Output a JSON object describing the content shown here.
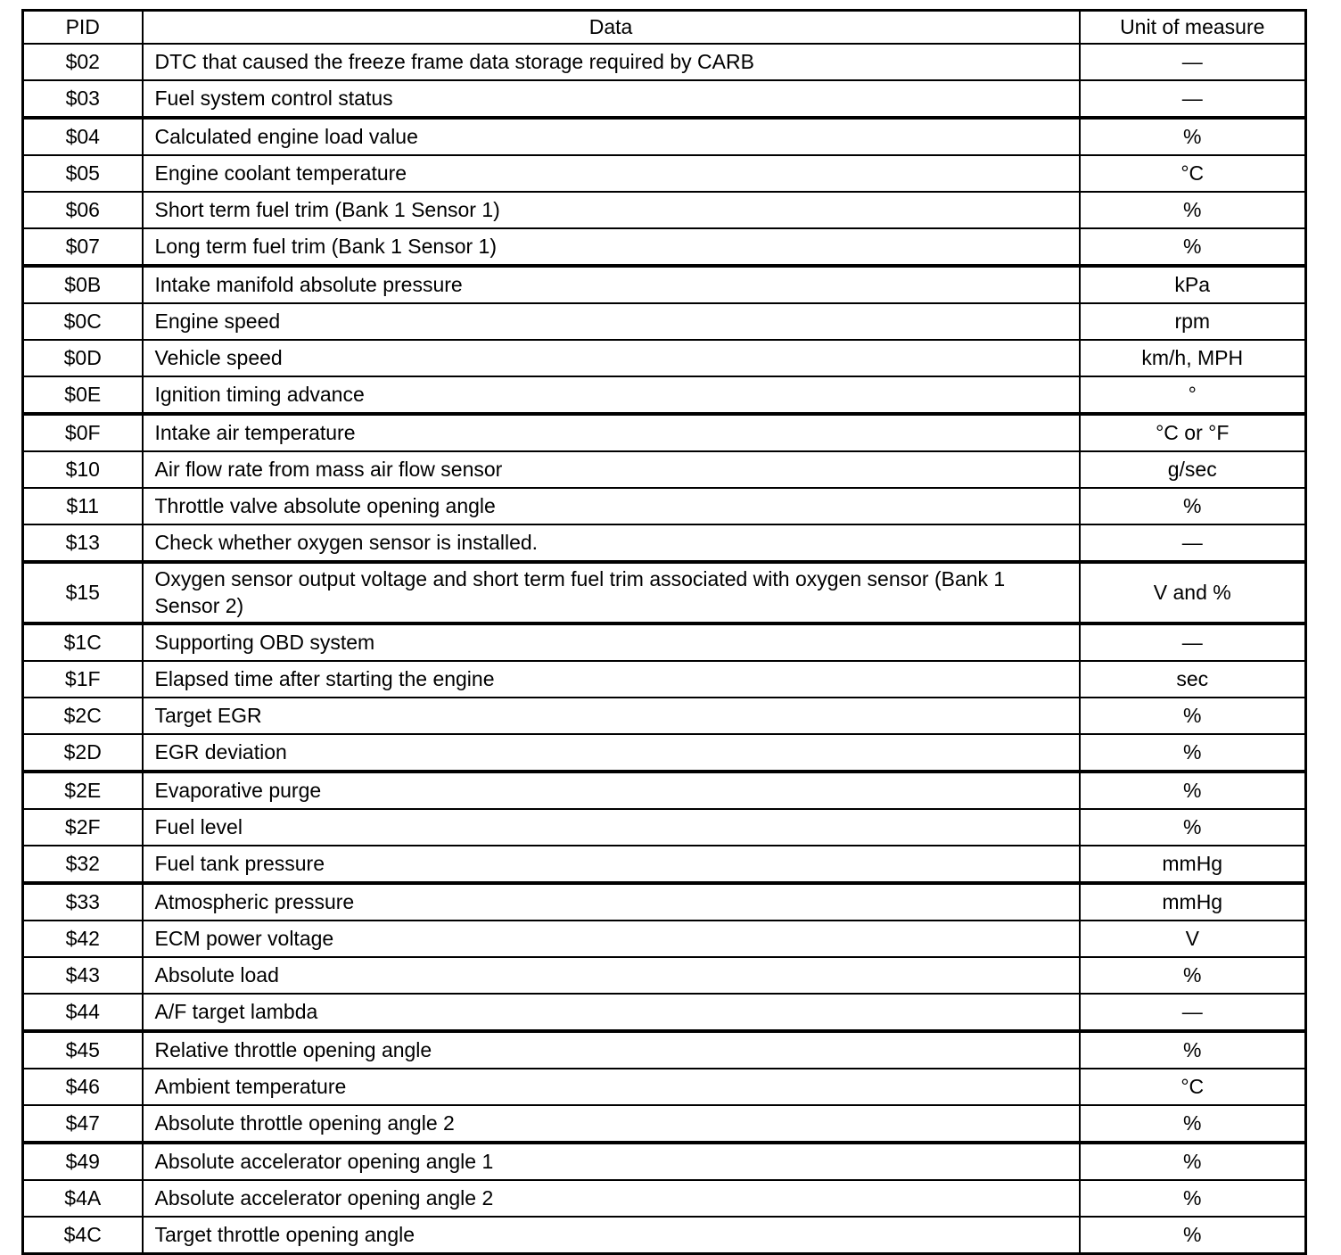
{
  "table": {
    "columns": [
      {
        "key": "pid",
        "label": "PID"
      },
      {
        "key": "data",
        "label": "Data"
      },
      {
        "key": "unit",
        "label": "Unit of measure"
      }
    ],
    "rows": [
      {
        "pid": "$02",
        "data": "DTC that caused the freeze frame data storage required by CARB",
        "unit": "—"
      },
      {
        "pid": "$03",
        "data": "Fuel system control status",
        "unit": "—"
      },
      {
        "pid": "$04",
        "data": "Calculated engine load value",
        "unit": "%",
        "thick_top": true
      },
      {
        "pid": "$05",
        "data": "Engine coolant temperature",
        "unit": "°C"
      },
      {
        "pid": "$06",
        "data": "Short term fuel trim (Bank 1 Sensor 1)",
        "unit": "%"
      },
      {
        "pid": "$07",
        "data": "Long term fuel trim (Bank 1 Sensor 1)",
        "unit": "%"
      },
      {
        "pid": "$0B",
        "data": "Intake manifold absolute pressure",
        "unit": "kPa",
        "thick_top": true
      },
      {
        "pid": "$0C",
        "data": "Engine speed",
        "unit": "rpm"
      },
      {
        "pid": "$0D",
        "data": "Vehicle speed",
        "unit": "km/h, MPH"
      },
      {
        "pid": "$0E",
        "data": "Ignition timing advance",
        "unit": "°"
      },
      {
        "pid": "$0F",
        "data": "Intake air temperature",
        "unit": "°C or °F",
        "thick_top": true
      },
      {
        "pid": "$10",
        "data": "Air flow rate from mass air flow sensor",
        "unit": "g/sec"
      },
      {
        "pid": "$11",
        "data": "Throttle valve absolute opening angle",
        "unit": "%"
      },
      {
        "pid": "$13",
        "data": "Check whether oxygen sensor is installed.",
        "unit": "—"
      },
      {
        "pid": "$15",
        "data": "Oxygen sensor output voltage and short term fuel trim associated with oxygen sensor (Bank 1 Sensor 2)",
        "unit": "V and %",
        "thick_top": true,
        "tall": true
      },
      {
        "pid": "$1C",
        "data": "Supporting OBD system",
        "unit": "—",
        "thick_top": true
      },
      {
        "pid": "$1F",
        "data": "Elapsed time after starting the engine",
        "unit": "sec"
      },
      {
        "pid": "$2C",
        "data": "Target EGR",
        "unit": "%"
      },
      {
        "pid": "$2D",
        "data": "EGR deviation",
        "unit": "%"
      },
      {
        "pid": "$2E",
        "data": "Evaporative purge",
        "unit": "%",
        "thick_top": true
      },
      {
        "pid": "$2F",
        "data": "Fuel level",
        "unit": "%"
      },
      {
        "pid": "$32",
        "data": "Fuel tank pressure",
        "unit": "mmHg"
      },
      {
        "pid": "$33",
        "data": "Atmospheric pressure",
        "unit": "mmHg",
        "thick_top": true
      },
      {
        "pid": "$42",
        "data": "ECM power voltage",
        "unit": "V"
      },
      {
        "pid": "$43",
        "data": "Absolute load",
        "unit": "%"
      },
      {
        "pid": "$44",
        "data": "A/F target lambda",
        "unit": "—"
      },
      {
        "pid": "$45",
        "data": "Relative throttle opening angle",
        "unit": "%",
        "thick_top": true
      },
      {
        "pid": "$46",
        "data": "Ambient temperature",
        "unit": "°C"
      },
      {
        "pid": "$47",
        "data": "Absolute throttle opening angle 2",
        "unit": "%"
      },
      {
        "pid": "$49",
        "data": "Absolute accelerator opening angle 1",
        "unit": "%",
        "thick_top": true
      },
      {
        "pid": "$4A",
        "data": "Absolute accelerator opening angle 2",
        "unit": "%"
      },
      {
        "pid": "$4C",
        "data": "Target throttle opening angle",
        "unit": "%"
      }
    ]
  }
}
